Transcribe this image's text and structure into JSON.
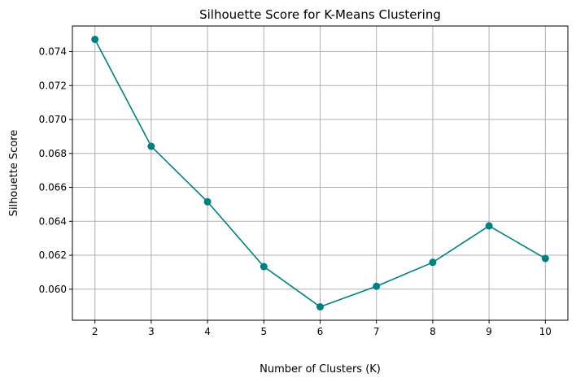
{
  "chart_data": {
    "type": "line",
    "title": "Silhouette Score for K-Means Clustering",
    "xlabel": "Number of Clusters (K)",
    "ylabel": "Silhouette Score",
    "x": [
      2,
      3,
      4,
      5,
      6,
      7,
      8,
      9,
      10
    ],
    "series": [
      {
        "values": [
          0.07472,
          0.06842,
          0.06515,
          0.06133,
          0.05896,
          0.06017,
          0.06158,
          0.06373,
          0.06181
        ],
        "color": "#008080",
        "marker": "circle"
      }
    ],
    "xticks": [
      "2",
      "3",
      "4",
      "5",
      "6",
      "7",
      "8",
      "9",
      "10"
    ],
    "yticks": [
      "0.060",
      "0.062",
      "0.064",
      "0.066",
      "0.068",
      "0.070",
      "0.072",
      "0.074"
    ],
    "xlim": [
      1.6,
      10.4
    ],
    "ylim": [
      0.05817,
      0.07551
    ],
    "grid": true,
    "legend": "none"
  }
}
